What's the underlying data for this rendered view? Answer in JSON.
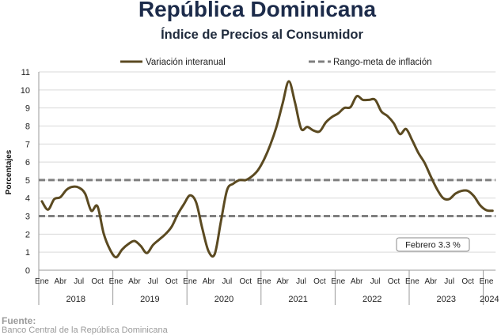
{
  "chart_data": {
    "type": "line",
    "title": "República Dominicana",
    "subtitle": "Índice de Precios al Consumidor",
    "legend_position": "top",
    "grid": true,
    "y_axis": {
      "label": "Porcentajes",
      "min": 0,
      "max": 11,
      "ticks": [
        0,
        1,
        2,
        3,
        4,
        5,
        6,
        7,
        8,
        9,
        10,
        11
      ]
    },
    "x_axis": {
      "groups": [
        {
          "label": "2018",
          "tick_labels": [
            "Ene",
            "Abr",
            "Jul",
            "Oct"
          ]
        },
        {
          "label": "2019",
          "tick_labels": [
            "Ene",
            "Abr",
            "Jul",
            "Oct"
          ]
        },
        {
          "label": "2020",
          "tick_labels": [
            "Ene",
            "Abr",
            "Jul",
            "Oct"
          ]
        },
        {
          "label": "2021",
          "tick_labels": [
            "Ene",
            "Abr",
            "Jul",
            "Oct"
          ]
        },
        {
          "label": "2022",
          "tick_labels": [
            "Ene",
            "Abr",
            "Jul",
            "Oct"
          ]
        },
        {
          "label": "2023",
          "tick_labels": [
            "Ene",
            "Abr",
            "Jul",
            "Oct"
          ]
        },
        {
          "label": "2024",
          "tick_labels": [
            "Ene"
          ]
        }
      ]
    },
    "series": [
      {
        "name": "Variación interanual",
        "color": "#5b4a21",
        "values": [
          [
            3.82,
            3.36,
            3.94,
            4.05,
            4.46,
            4.63,
            4.58,
            4.25,
            3.3,
            3.55,
            2.05,
            1.17
          ],
          [
            0.72,
            1.15,
            1.45,
            1.62,
            1.35,
            0.95,
            1.4,
            1.7,
            2.0,
            2.4,
            3.1,
            3.66
          ],
          [
            4.15,
            3.75,
            2.3,
            1.05,
            0.9,
            2.7,
            4.45,
            4.8,
            5.0,
            5.0,
            5.2,
            5.55
          ],
          [
            6.15,
            6.95,
            7.95,
            9.25,
            10.48,
            9.3,
            7.85,
            7.95,
            7.75,
            7.7,
            8.2,
            8.5
          ],
          [
            8.7,
            9.0,
            9.05,
            9.65,
            9.45,
            9.45,
            9.45,
            8.8,
            8.55,
            8.15,
            7.55,
            7.83
          ],
          [
            7.2,
            6.5,
            5.95,
            5.2,
            4.5,
            4.0,
            3.95,
            4.25,
            4.4,
            4.4,
            4.1,
            3.6
          ],
          [
            3.33,
            3.3
          ]
        ]
      }
    ],
    "target_range": {
      "name": "Rango-meta de inflación",
      "lower": 3,
      "upper": 5,
      "color": "#7f7f7f",
      "style": "dashed"
    },
    "annotation": {
      "text": "Febrero 3.3 %"
    }
  },
  "source": {
    "label": "Fuente:",
    "text": "Banco Central de la República Dominicana"
  }
}
